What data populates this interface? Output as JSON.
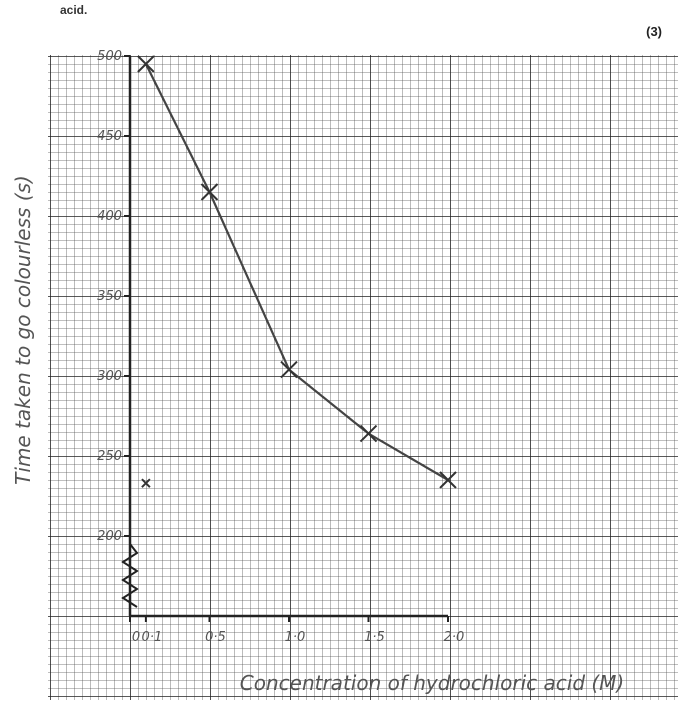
{
  "header": "acid.",
  "marks": "(3)",
  "chart_data": {
    "type": "line",
    "xlabel": "Concentration of hydrochloric acid (M)",
    "ylabel": "Time taken to go colourless (s)",
    "x": [
      0.1,
      0.5,
      1.0,
      1.5,
      2.0
    ],
    "series": [
      {
        "color": "#444",
        "values": [
          495,
          415,
          304,
          264,
          235
        ]
      }
    ],
    "extra_points": {
      "x": [
        0.1
      ],
      "values": [
        233
      ]
    },
    "xlim": [
      0,
      2
    ],
    "ylim": [
      150,
      500
    ],
    "xticks": [
      {
        "value": 0,
        "label": "0"
      },
      {
        "value": 0.1,
        "label": "0·1"
      },
      {
        "value": 0.5,
        "label": "0·5"
      },
      {
        "value": 1.0,
        "label": "1·0"
      },
      {
        "value": 1.5,
        "label": "1·5"
      },
      {
        "value": 2.0,
        "label": "2·0"
      }
    ],
    "yticks": [
      200,
      250,
      300,
      350,
      400,
      450,
      500
    ],
    "axis_break": true
  }
}
